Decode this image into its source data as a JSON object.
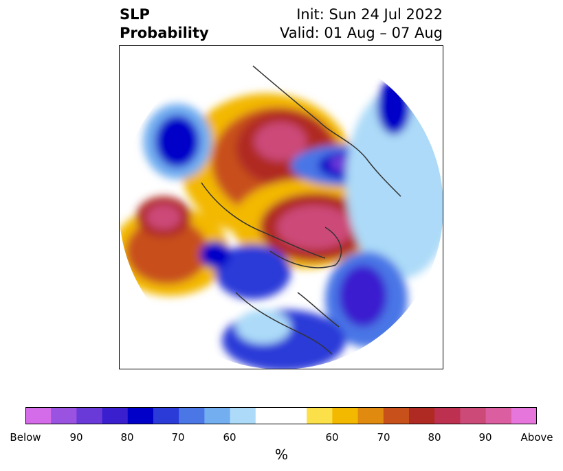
{
  "title": {
    "left_line1": "SLP",
    "left_line2": "Probability",
    "right_line1": "Init: Sun 24 Jul 2022",
    "right_line2": "Valid: 01 Aug – 07 Aug"
  },
  "colorbar": {
    "unit": "%",
    "below_label": "Below",
    "above_label": "Above",
    "colors": [
      "#d46be8",
      "#9a52e0",
      "#6a3ad8",
      "#3a1fcf",
      "#0000c8",
      "#2a3bd8",
      "#4a76e6",
      "#72aef0",
      "#acdaf8",
      "#ffffff",
      "#ffffff",
      "#fbe04a",
      "#f3b800",
      "#e08a10",
      "#c8501a",
      "#b02a24",
      "#be3050",
      "#cc4a78",
      "#da5ea0",
      "#e676dc"
    ],
    "tick_labels": [
      "Below",
      "90",
      "80",
      "70",
      "60",
      "60",
      "70",
      "80",
      "90",
      "Above"
    ]
  }
}
